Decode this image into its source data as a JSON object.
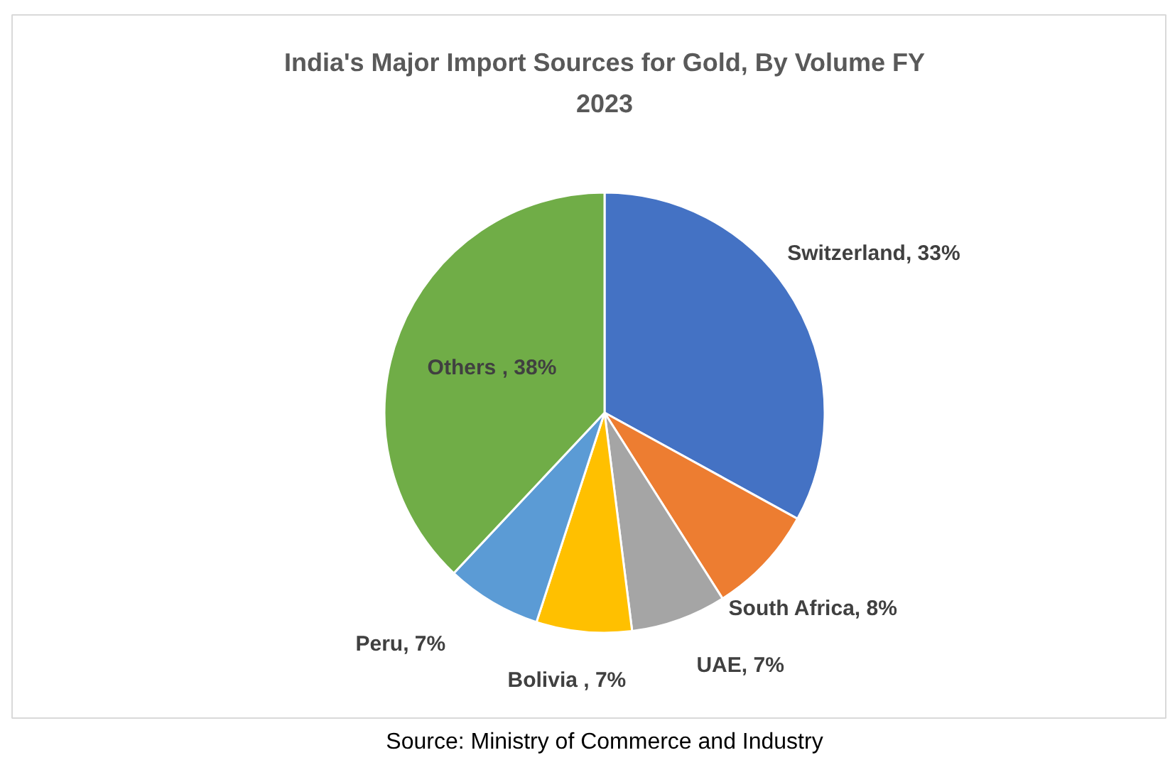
{
  "chart_data": {
    "type": "pie",
    "title": "India's Major Import Sources for Gold, By Volume FY 2023",
    "categories": [
      "Switzerland",
      "South Africa",
      "UAE",
      "Bolivia ",
      "Peru",
      "Others "
    ],
    "values": [
      33,
      8,
      7,
      7,
      7,
      38
    ],
    "value_labels": [
      "33%",
      "8%",
      "7%",
      "7%",
      "7%",
      "38%"
    ],
    "colors": [
      "#4472c4",
      "#ed7d31",
      "#a5a5a5",
      "#ffc000",
      "#5b9bd5",
      "#70ad47"
    ],
    "legend": false,
    "annotations": [
      "Source: Ministry of Commerce and Industry"
    ]
  }
}
